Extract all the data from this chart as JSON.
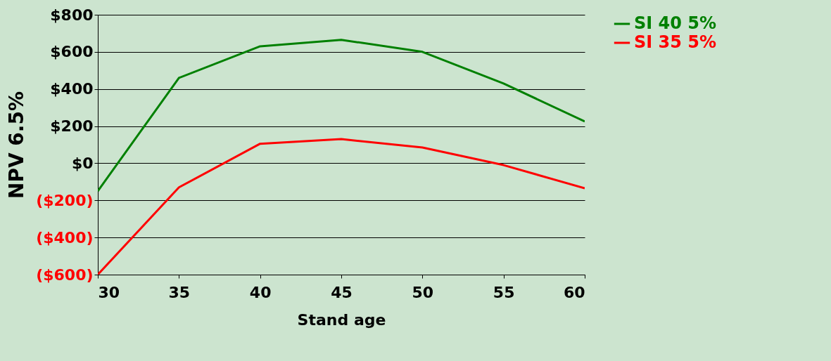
{
  "chart_data": {
    "type": "line",
    "xlabel": "Stand age",
    "ylabel": "NPV 6.5%",
    "x": [
      30,
      35,
      40,
      45,
      50,
      55,
      60
    ],
    "series": [
      {
        "name": "SI 40 5%",
        "color": "#008000",
        "values": [
          -150,
          460,
          630,
          665,
          600,
          430,
          225
        ]
      },
      {
        "name": "SI 35 5%",
        "color": "#ff0000",
        "values": [
          -600,
          -130,
          105,
          130,
          85,
          -10,
          -135
        ]
      }
    ],
    "xlim": [
      30,
      60
    ],
    "xticks": [
      30,
      35,
      40,
      45,
      50,
      55,
      60
    ],
    "ylim": [
      -600,
      800
    ],
    "yticks": [
      {
        "value": -600,
        "label": "($600)"
      },
      {
        "value": -400,
        "label": "($400)"
      },
      {
        "value": -200,
        "label": "($200)"
      },
      {
        "value": 0,
        "label": "$0"
      },
      {
        "value": 200,
        "label": "$200"
      },
      {
        "value": 400,
        "label": "$400"
      },
      {
        "value": 600,
        "label": "$600"
      },
      {
        "value": 800,
        "label": "$800"
      }
    ],
    "grid": "y",
    "legend": "right",
    "marker": "none",
    "line_style": "solid"
  }
}
